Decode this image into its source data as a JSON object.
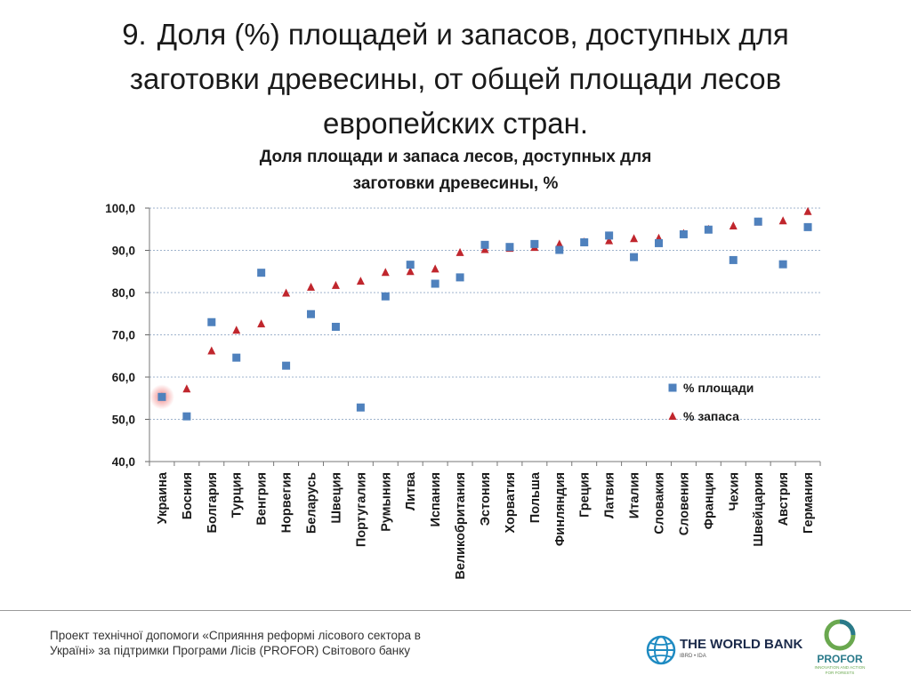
{
  "slide": {
    "number": "9.",
    "title": "Доля (%) площадей и запасов,  доступных для заготовки древесины, от общей площади лесов европейских стран."
  },
  "chart_data": {
    "type": "scatter",
    "title_line1": "Доля площади и запаса лесов, доступных для",
    "title_line2": "заготовки древесины, %",
    "categories": [
      "Украина",
      "Босния",
      "Болгария",
      "Турция",
      "Венгрия",
      "Норвегия",
      "Беларусь",
      "Швеция",
      "Португалия",
      "Румыния",
      "Литва",
      "Испания",
      "Великобритания",
      "Эстония",
      "Хорватия",
      "Польша",
      "Финляндия",
      "Греция",
      "Латвия",
      "Италия",
      "Словакия",
      "Словения",
      "Франция",
      "Чехия",
      "Швейцария",
      "Австрия",
      "Германия"
    ],
    "series": [
      {
        "name": "% площади",
        "marker": "square",
        "color": "#4f81bd",
        "values": [
          55.3,
          50.7,
          73.0,
          64.6,
          84.7,
          62.7,
          74.9,
          71.9,
          52.8,
          79.1,
          86.6,
          82.1,
          83.6,
          91.3,
          90.8,
          91.5,
          90.1,
          91.9,
          93.5,
          88.4,
          91.7,
          93.8,
          94.9,
          87.7,
          96.8,
          86.7,
          95.5
        ]
      },
      {
        "name": "% запаса",
        "marker": "triangle",
        "color": "#c0262d",
        "values": [
          55.3,
          57.2,
          66.2,
          71.1,
          72.6,
          79.9,
          81.3,
          81.7,
          82.7,
          84.8,
          85.0,
          85.6,
          89.5,
          90.2,
          90.5,
          90.7,
          91.5,
          92.0,
          92.3,
          92.8,
          92.9,
          94.0,
          95.0,
          95.8,
          96.7,
          97.0,
          99.2
        ]
      }
    ],
    "y_ticks": [
      "40,0",
      "50,0",
      "60,0",
      "70,0",
      "80,0",
      "90,0",
      "100,0"
    ],
    "ylim": [
      40,
      100
    ],
    "grid": true,
    "legend_position": "right",
    "highlight_category": "Украина",
    "highlight_color": "#f08080"
  },
  "footer": {
    "text": "Проект технічної допомоги «Сприяння реформі лісового сектора в Україні» за підтримки Програми Лісів (PROFOR) Світового банку"
  },
  "logos": {
    "worldbank_name": "THE WORLD BANK",
    "worldbank_sub": "IBRD • IDA",
    "profor_name": "PROFOR",
    "profor_tagline": "INNOVATION AND ACTION FOR FORESTS"
  }
}
